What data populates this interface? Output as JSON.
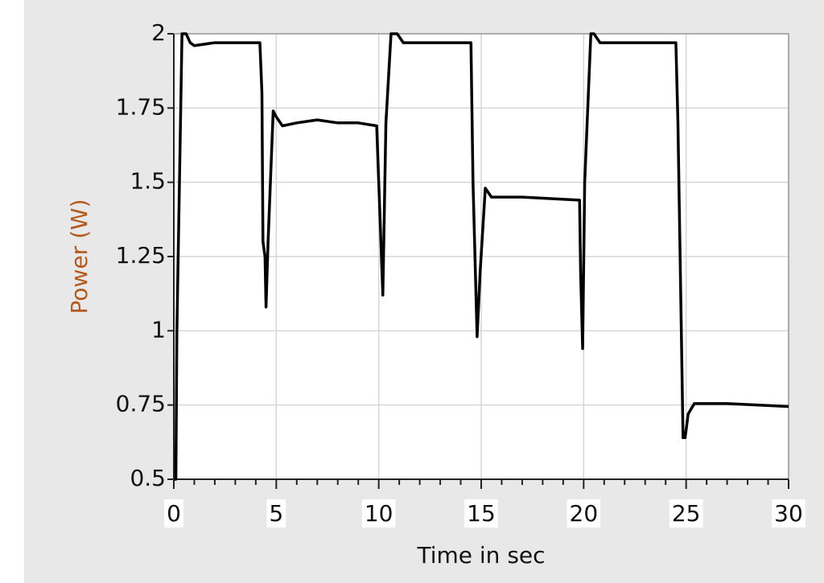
{
  "chart_data": {
    "type": "line",
    "xlabel": "Time in sec",
    "ylabel": "Power (W)",
    "xlim": [
      0,
      30
    ],
    "xticks": [
      0,
      5,
      10,
      15,
      20,
      25,
      30
    ],
    "ylim": [
      0.5,
      2
    ],
    "yticks": [
      0.5,
      0.75,
      1,
      1.25,
      1.5,
      1.75,
      2
    ],
    "grid": true,
    "x": [
      0,
      0.1,
      0.15,
      0.3,
      0.4,
      0.6,
      0.8,
      1.0,
      2,
      4.2,
      4.3,
      4.35,
      4.45,
      4.5,
      4.6,
      4.85,
      5.0,
      5.3,
      6,
      7,
      8,
      9,
      9.9,
      10.0,
      10.2,
      10.35,
      10.6,
      10.9,
      11.2,
      12,
      14.5,
      14.6,
      14.8,
      14.95,
      15.2,
      15.5,
      17,
      19.8,
      19.85,
      19.95,
      20.05,
      20.35,
      20.5,
      20.8,
      21.2,
      23,
      24.5,
      24.6,
      24.85,
      24.95,
      25.1,
      25.4,
      27,
      30
    ],
    "series": [
      {
        "color": "#000000",
        "values": [
          0.5,
          0.5,
          1.0,
          1.6,
          2.0,
          2.0,
          1.97,
          1.96,
          1.97,
          1.97,
          1.8,
          1.3,
          1.25,
          1.08,
          1.3,
          1.74,
          1.72,
          1.69,
          1.7,
          1.71,
          1.7,
          1.7,
          1.69,
          1.5,
          1.12,
          1.7,
          2.0,
          2.0,
          1.97,
          1.97,
          1.97,
          1.5,
          0.98,
          1.2,
          1.48,
          1.45,
          1.45,
          1.44,
          1.2,
          0.94,
          1.5,
          2.0,
          2.0,
          1.97,
          1.97,
          1.97,
          1.97,
          1.7,
          0.64,
          0.64,
          0.72,
          0.755,
          0.755,
          0.745
        ]
      }
    ]
  }
}
